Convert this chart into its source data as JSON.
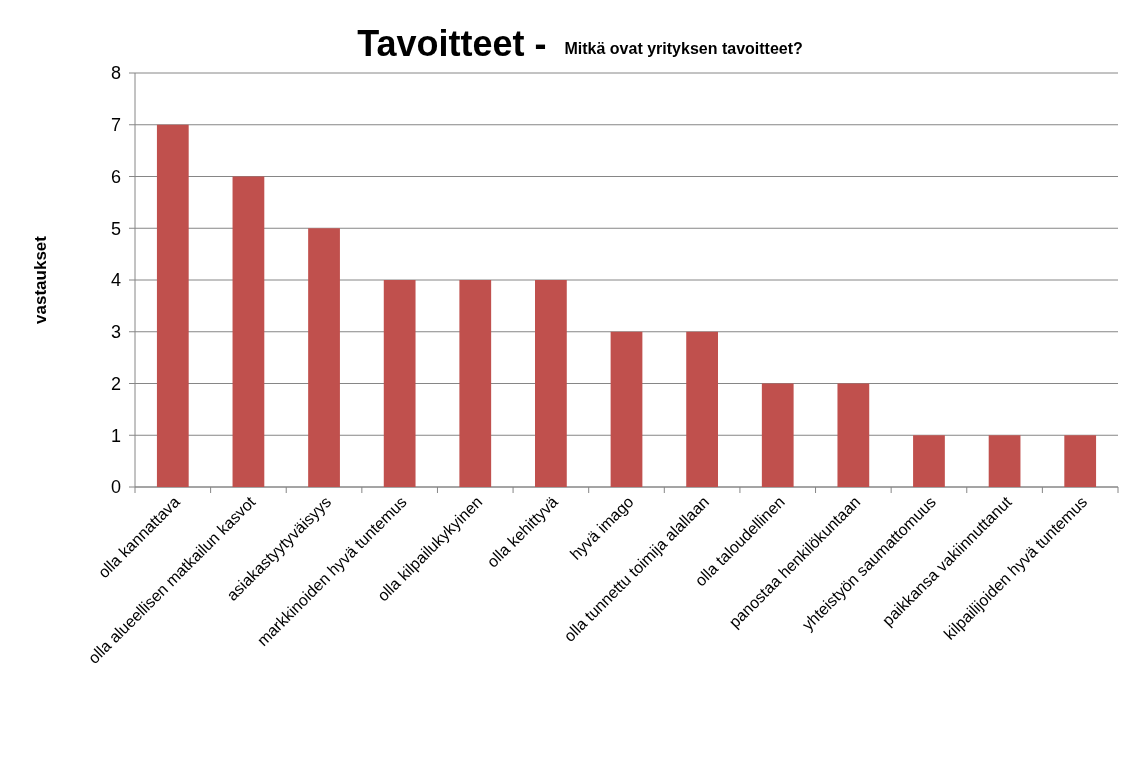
{
  "chart_data": {
    "type": "bar",
    "title": "Tavoitteet -",
    "subtitle": "Mitkä ovat yrityksen tavoitteet?",
    "ylabel": "vastaukset",
    "categories": [
      "olla kannattava",
      "olla alueellisen matkailun kasvot",
      "asiakastyytyväisyys",
      "markkinoiden hyvä tuntemus",
      "olla kilpailukykyinen",
      "olla kehittyvä",
      "hyvä imago",
      "olla tunnettu toimija alallaan",
      "olla taloudellinen",
      "panostaa henkilökuntaan",
      "yhteistyön saumattomuus",
      "paikkansa vakiinnuttanut",
      "kilpailijoiden hyvä tuntemus"
    ],
    "values": [
      7,
      6,
      5,
      4,
      4,
      4,
      3,
      3,
      2,
      2,
      1,
      1,
      1
    ],
    "color": "#c0504d",
    "ylim": [
      0,
      8
    ],
    "yticks": [
      0,
      1,
      2,
      3,
      4,
      5,
      6,
      7,
      8
    ],
    "grid": "y"
  }
}
